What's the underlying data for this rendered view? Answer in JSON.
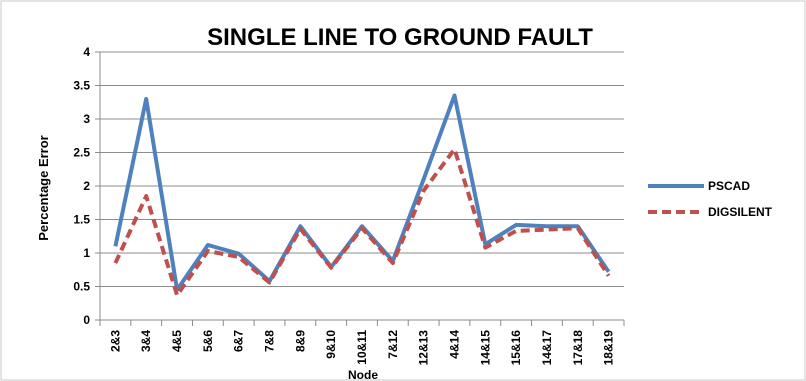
{
  "chart_data": {
    "type": "line",
    "title": "SINGLE LINE TO GROUND FAULT",
    "xlabel": "Node",
    "ylabel": "Percentage Error",
    "ylim": [
      0,
      4
    ],
    "yticks": [
      "0",
      "0.5",
      "1",
      "1.5",
      "2",
      "2.5",
      "3",
      "3.5",
      "4"
    ],
    "grid": true,
    "legend_position": "right",
    "categories": [
      "2&3",
      "3&4",
      "4&5",
      "5&6",
      "6&7",
      "7&8",
      "8&9",
      "9&10",
      "10&11",
      "7&12",
      "12&13",
      "4&14",
      "14&15",
      "15&16",
      "14&17",
      "17&18",
      "18&19"
    ],
    "series": [
      {
        "name": "PSCAD",
        "color": "#4f81bd",
        "dash": "solid",
        "values": [
          1.1,
          3.3,
          0.45,
          1.12,
          0.99,
          0.58,
          1.4,
          0.79,
          1.4,
          0.88,
          2.1,
          3.35,
          1.13,
          1.42,
          1.4,
          1.4,
          0.72
        ]
      },
      {
        "name": "DIGSILENT",
        "color": "#c0504d",
        "dash": "dashed",
        "values": [
          0.85,
          1.85,
          0.37,
          1.03,
          0.94,
          0.56,
          1.36,
          0.78,
          1.37,
          0.85,
          1.93,
          2.55,
          1.08,
          1.33,
          1.35,
          1.37,
          0.66
        ]
      }
    ]
  }
}
